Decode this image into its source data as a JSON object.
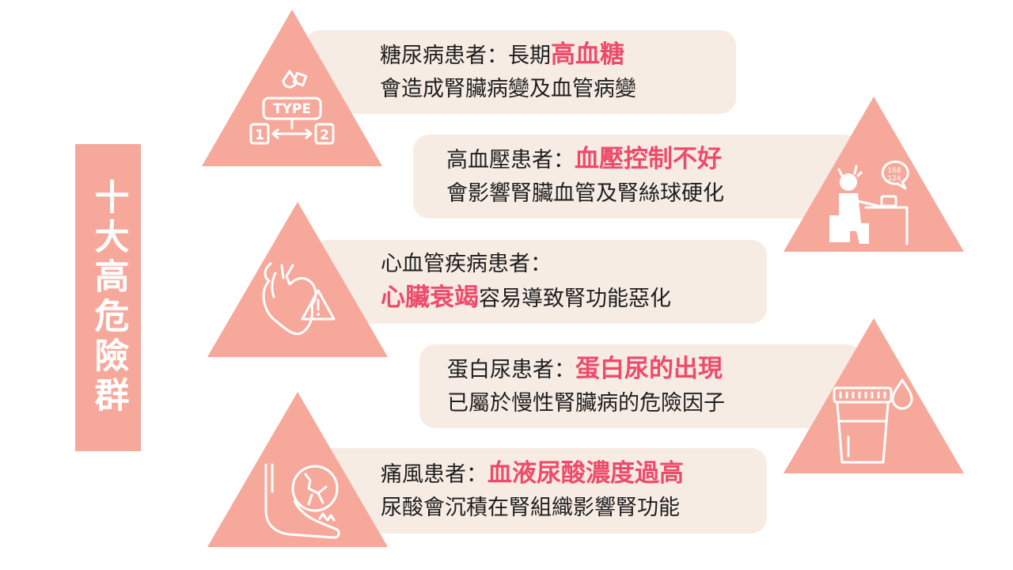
{
  "side_title": "十大高危險群",
  "colors": {
    "accent": "#f6a99b",
    "highlight": "#ee4b6a",
    "card_bg": "#f7ece4"
  },
  "items": [
    {
      "lead": "糖尿病患者：長期",
      "highlight": "高血糖",
      "desc": "會造成腎臟病變及血管病變",
      "icon": "diabetes-type-icon",
      "icon_text": "TYPE",
      "icon_n1": "1",
      "icon_n2": "2"
    },
    {
      "lead": "高血壓患者：",
      "highlight": "血壓控制不好",
      "desc": "會影響腎臟血管及腎絲球硬化",
      "icon": "blood-pressure-icon",
      "icon_bp1": "168",
      "icon_bp2": "124"
    },
    {
      "lead": "心血管疾病患者：",
      "highlight": "心臟衰竭",
      "desc": "容易導致腎功能惡化",
      "icon": "heart-warning-icon"
    },
    {
      "lead": "蛋白尿患者：",
      "highlight": "蛋白尿的出現",
      "desc": "已屬於慢性腎臟病的危險因子",
      "icon": "urine-cup-icon"
    },
    {
      "lead": "痛風患者：",
      "highlight": "血液尿酸濃度過高",
      "desc": "尿酸會沉積在腎組織影響腎功能",
      "icon": "gout-foot-icon"
    }
  ]
}
